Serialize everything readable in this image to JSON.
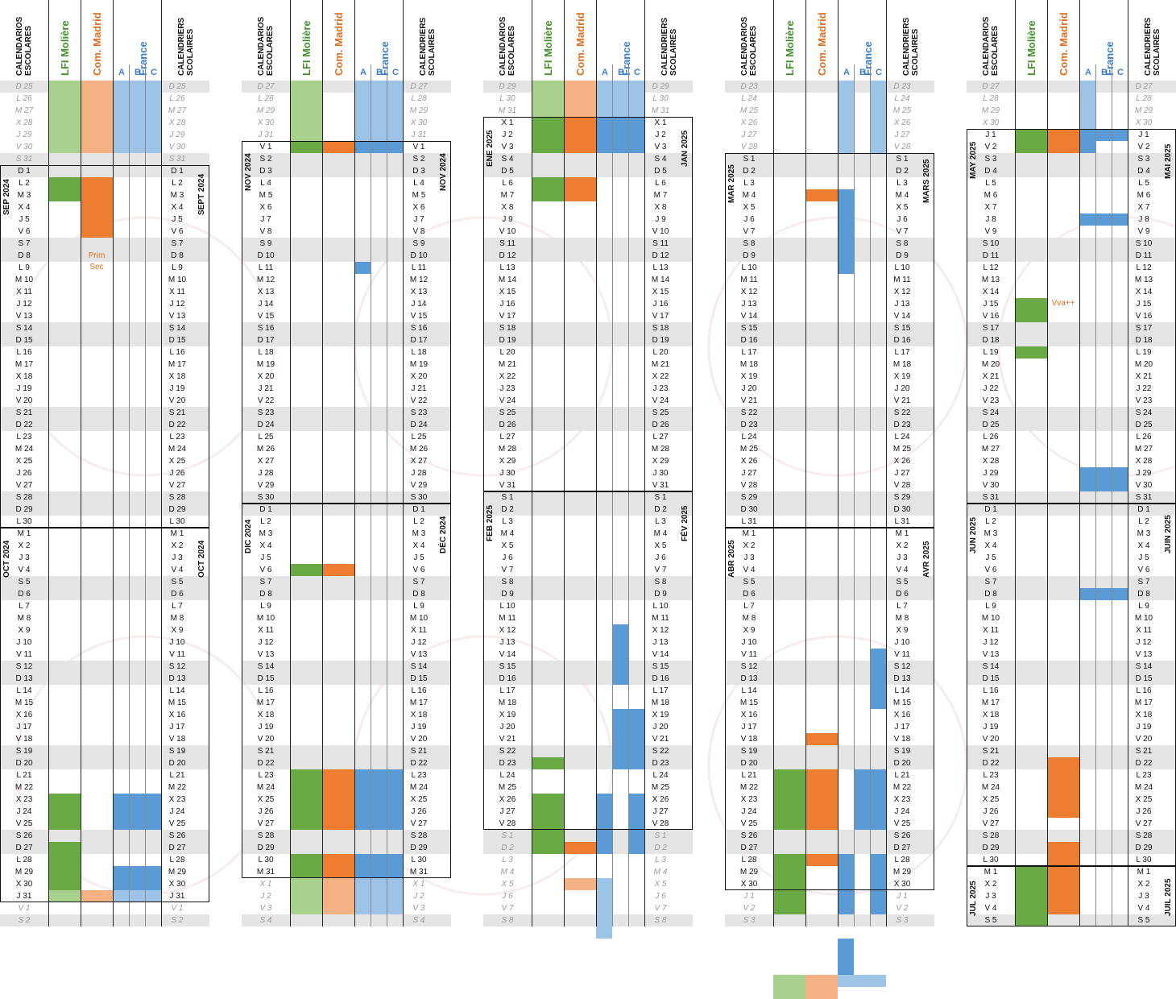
{
  "header": {
    "cal_line1": "CALENDARIOS",
    "cal_line2": "ESCOLARES",
    "lfi": "LFI Molière",
    "cm": "Com. Madrid",
    "fr": "France",
    "a": "A",
    "b": "B",
    "c": "C",
    "cal_r_line1": "CALENDRIERS",
    "cal_r_line2": "SCOLAIRES"
  },
  "colors": {
    "green": "#6aaa45",
    "green_light": "#a9d18e",
    "orange": "#ed7d31",
    "orange_light": "#f4b183",
    "blue": "#5b9bd5",
    "blue_light": "#9dc3e6",
    "weekend": "#e4e4e4"
  },
  "notes": {
    "prim": "Prim",
    "sec": "Sec",
    "vva": "Vva++"
  },
  "watermark": {
    "line1": "Lycée Français Molière",
    "line2": "Villanueva de la Cañada"
  },
  "blocks": [
    {
      "start": 25,
      "pre_days": 31,
      "pre_wd": 0,
      "months": [
        {
          "es": "SEP 2024",
          "fr": "SEPT 2024",
          "days": 30,
          "first_wd": 0,
          "ext": false
        },
        {
          "es": "OCT 2024",
          "fr": "OCT 2024",
          "days": 31,
          "first_wd": 2,
          "ext": false
        },
        {
          "es": "",
          "fr": "",
          "days": 2,
          "first_wd": 2,
          "ext": true,
          "truncate": 2
        }
      ],
      "pre_wd_start": 0
    },
    {
      "start": 27,
      "pre_days": 31,
      "pre_wd": 0,
      "months": [
        {
          "es": "NOV 2024",
          "fr": "NOV 2024",
          "days": 30,
          "first_wd": 5,
          "ext": false
        },
        {
          "es": "DIC 2024",
          "fr": "DÉC 2024",
          "days": 31,
          "first_wd": 0,
          "ext": false
        },
        {
          "es": "",
          "fr": "",
          "days": 4,
          "first_wd": 3,
          "ext": true
        }
      ]
    },
    {
      "start": 29,
      "pre_days": 31,
      "pre_wd": 0,
      "months": [
        {
          "es": "ENE 2025",
          "fr": "JAN 2025",
          "days": 31,
          "first_wd": 3,
          "ext": false
        },
        {
          "es": "FEB 2025",
          "fr": "FÉV 2025",
          "days": 28,
          "first_wd": 6,
          "ext": false
        },
        {
          "es": "",
          "fr": "",
          "days": 8,
          "first_wd": 6,
          "ext": true
        }
      ]
    },
    {
      "start": 23,
      "pre_days": 28,
      "pre_wd": 0,
      "months": [
        {
          "es": "MAR 2025",
          "fr": "MARS 2025",
          "days": 31,
          "first_wd": 6,
          "ext": false
        },
        {
          "es": "ABR 2025",
          "fr": "AVR 2025",
          "days": 30,
          "first_wd": 2,
          "ext": false
        },
        {
          "es": "",
          "fr": "",
          "days": 3,
          "first_wd": 4,
          "ext": true
        }
      ]
    },
    {
      "start": 27,
      "pre_days": 30,
      "pre_wd": 0,
      "months": [
        {
          "es": "MAY 2025",
          "fr": "MAI 2025",
          "days": 31,
          "first_wd": 4,
          "ext": false
        },
        {
          "es": "JUN 2025",
          "fr": "JUIN 2025",
          "days": 30,
          "first_wd": 0,
          "ext": false
        },
        {
          "es": "JUL 2025",
          "fr": "JUIL 2025",
          "days": 5,
          "first_wd": 2,
          "ext": false
        }
      ]
    }
  ],
  "day_letters": [
    "D",
    "L",
    "M",
    "X",
    "J",
    "V",
    "S"
  ],
  "fills": [
    [
      [
        0,
        6,
        "lfi",
        "green_light"
      ],
      [
        0,
        6,
        "cm",
        "orange_light"
      ],
      [
        0,
        6,
        "A",
        "blue_light"
      ],
      [
        0,
        6,
        "B",
        "blue_light"
      ],
      [
        0,
        6,
        "C",
        "blue_light"
      ],
      [
        8,
        10,
        "lfi",
        "green"
      ],
      [
        8,
        13,
        "cm",
        "orange"
      ],
      [
        59,
        62,
        "lfi",
        "green"
      ],
      [
        59,
        62,
        "A",
        "blue"
      ],
      [
        59,
        62,
        "B",
        "blue"
      ],
      [
        59,
        62,
        "C",
        "blue"
      ],
      [
        63,
        67,
        "lfi",
        "green"
      ],
      [
        65,
        67,
        "A",
        "blue"
      ],
      [
        65,
        67,
        "B",
        "blue"
      ],
      [
        65,
        67,
        "C",
        "blue"
      ],
      [
        67,
        68,
        "lfi",
        "green_light"
      ],
      [
        67,
        68,
        "cm",
        "orange_light"
      ],
      [
        67,
        68,
        "A",
        "blue_light"
      ],
      [
        67,
        68,
        "B",
        "blue_light"
      ],
      [
        67,
        68,
        "C",
        "blue_light"
      ]
    ],
    [
      [
        0,
        5,
        "lfi",
        "green_light"
      ],
      [
        0,
        5,
        "A",
        "blue_light"
      ],
      [
        0,
        5,
        "B",
        "blue_light"
      ],
      [
        0,
        5,
        "C",
        "blue_light"
      ],
      [
        5,
        6,
        "lfi",
        "green"
      ],
      [
        5,
        6,
        "cm",
        "orange"
      ],
      [
        5,
        6,
        "A",
        "blue"
      ],
      [
        5,
        6,
        "B",
        "blue"
      ],
      [
        5,
        6,
        "C",
        "blue"
      ],
      [
        15,
        16,
        "A",
        "blue"
      ],
      [
        40,
        41,
        "lfi",
        "green"
      ],
      [
        40,
        41,
        "cm",
        "orange"
      ],
      [
        57,
        62,
        "lfi",
        "green"
      ],
      [
        57,
        62,
        "cm",
        "orange"
      ],
      [
        57,
        62,
        "A",
        "blue"
      ],
      [
        57,
        62,
        "B",
        "blue"
      ],
      [
        57,
        62,
        "C",
        "blue"
      ],
      [
        64,
        66,
        "lfi",
        "green"
      ],
      [
        64,
        66,
        "cm",
        "orange"
      ],
      [
        64,
        66,
        "A",
        "blue"
      ],
      [
        64,
        66,
        "B",
        "blue"
      ],
      [
        64,
        66,
        "C",
        "blue"
      ],
      [
        66,
        69,
        "lfi",
        "green_light"
      ],
      [
        66,
        69,
        "cm",
        "orange_light"
      ],
      [
        66,
        69,
        "A",
        "blue_light"
      ],
      [
        66,
        69,
        "B",
        "blue_light"
      ],
      [
        66,
        69,
        "C",
        "blue_light"
      ]
    ],
    [
      [
        0,
        3,
        "lfi",
        "green_light"
      ],
      [
        0,
        3,
        "cm",
        "orange_light"
      ],
      [
        0,
        3,
        "A",
        "blue_light"
      ],
      [
        0,
        3,
        "B",
        "blue_light"
      ],
      [
        0,
        3,
        "C",
        "blue_light"
      ],
      [
        3,
        6,
        "lfi",
        "green"
      ],
      [
        3,
        6,
        "cm",
        "orange"
      ],
      [
        3,
        6,
        "A",
        "blue"
      ],
      [
        3,
        6,
        "B",
        "blue"
      ],
      [
        3,
        6,
        "C",
        "blue"
      ],
      [
        8,
        10,
        "lfi",
        "green"
      ],
      [
        8,
        10,
        "cm",
        "orange"
      ],
      [
        45,
        50,
        "B",
        "blue"
      ],
      [
        52,
        57,
        "B",
        "blue"
      ],
      [
        52,
        57,
        "C",
        "blue"
      ],
      [
        56,
        57,
        "lfi",
        "green"
      ],
      [
        59,
        64,
        "lfi",
        "green"
      ],
      [
        59,
        64,
        "A",
        "blue"
      ],
      [
        59,
        64,
        "C",
        "blue"
      ],
      [
        63,
        64,
        "cm",
        "orange"
      ],
      [
        66,
        67,
        "cm",
        "orange_light"
      ],
      [
        66,
        71,
        "A",
        "blue_light"
      ]
    ],
    [
      [
        0,
        6,
        "A",
        "blue_light"
      ],
      [
        0,
        6,
        "C",
        "blue_light"
      ],
      [
        9,
        10,
        "cm",
        "orange"
      ],
      [
        9,
        16,
        "A",
        "blue"
      ],
      [
        47,
        52,
        "C",
        "blue"
      ],
      [
        54,
        55,
        "cm",
        "orange"
      ],
      [
        57,
        62,
        "lfi",
        "green"
      ],
      [
        57,
        62,
        "cm",
        "orange"
      ],
      [
        57,
        62,
        "B",
        "blue"
      ],
      [
        57,
        62,
        "C",
        "blue"
      ],
      [
        64,
        69,
        "lfi",
        "green"
      ],
      [
        64,
        65,
        "cm",
        "orange"
      ],
      [
        64,
        69,
        "A",
        "blue"
      ],
      [
        64,
        69,
        "C",
        "blue"
      ],
      [
        71,
        74,
        "A",
        "blue"
      ],
      [
        74,
        76,
        "lfi",
        "green_light"
      ],
      [
        74,
        76,
        "cm",
        "orange_light"
      ],
      [
        74,
        75,
        "A",
        "blue_light"
      ],
      [
        74,
        75,
        "B",
        "blue_light"
      ],
      [
        74,
        75,
        "C",
        "blue_light"
      ]
    ],
    [
      [
        0,
        4,
        "A",
        "blue_light"
      ],
      [
        4,
        6,
        "lfi",
        "green"
      ],
      [
        4,
        6,
        "cm",
        "orange"
      ],
      [
        4,
        6,
        "A",
        "blue"
      ],
      [
        4,
        5,
        "B",
        "blue"
      ],
      [
        4,
        5,
        "C",
        "blue"
      ],
      [
        11,
        12,
        "A",
        "blue"
      ],
      [
        11,
        12,
        "B",
        "blue"
      ],
      [
        11,
        12,
        "C",
        "blue"
      ],
      [
        18,
        20,
        "lfi",
        "green"
      ],
      [
        22,
        23,
        "lfi",
        "green"
      ],
      [
        32,
        34,
        "A",
        "blue"
      ],
      [
        32,
        34,
        "B",
        "blue"
      ],
      [
        32,
        34,
        "C",
        "blue"
      ],
      [
        42,
        43,
        "A",
        "blue"
      ],
      [
        42,
        43,
        "B",
        "blue"
      ],
      [
        42,
        43,
        "C",
        "blue"
      ],
      [
        56,
        61,
        "cm",
        "orange"
      ],
      [
        63,
        66,
        "cm",
        "orange"
      ],
      [
        65,
        70,
        "lfi",
        "green"
      ],
      [
        65,
        69,
        "cm",
        "orange"
      ]
    ]
  ]
}
